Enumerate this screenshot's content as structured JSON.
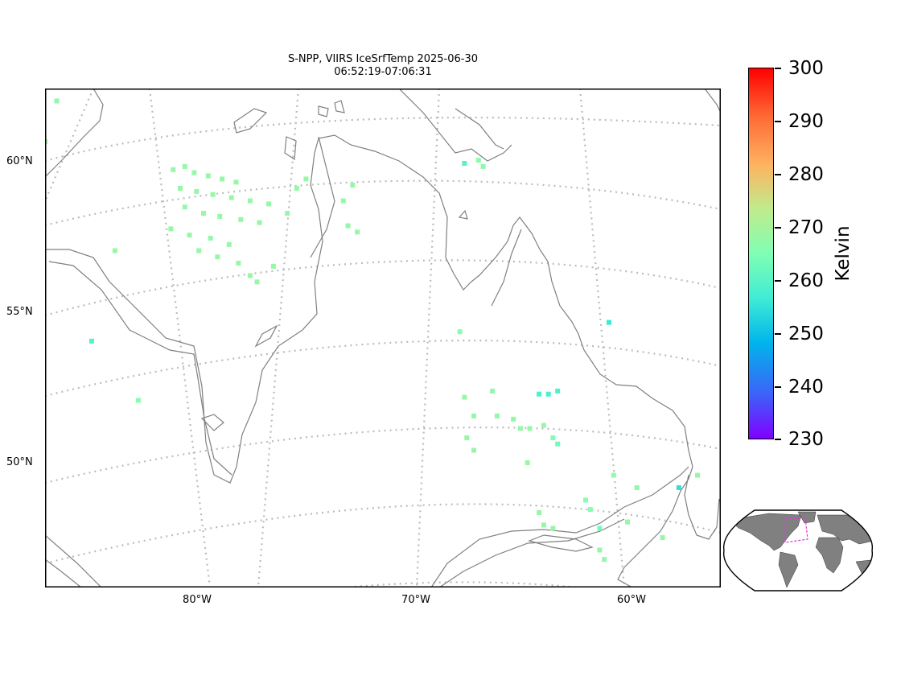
{
  "title_line1": "S-NPP, VIIRS IceSrfTemp 2025-06-30",
  "title_line2": "06:52:19-07:06:31",
  "lat_labels": [
    "60°N",
    "55°N",
    "50°N"
  ],
  "lon_labels": [
    "80°W",
    "70°W",
    "60°W"
  ],
  "colorbar": {
    "unit": "Kelvin",
    "ticks": [
      "300",
      "290",
      "280",
      "270",
      "260",
      "250",
      "240",
      "230"
    ],
    "min": 230,
    "max": 300,
    "colormap": "rainbow",
    "colors": [
      "#8000ff",
      "#3c63f9",
      "#00b5eb",
      "#40ecd4",
      "#80ffb4",
      "#c0eb8d",
      "#ffb360",
      "#ff6a35",
      "#ff0000"
    ]
  },
  "map": {
    "projection": "regional",
    "region": "Hudson Bay, Quebec and Labrador",
    "lon_range": [
      -86,
      -57
    ],
    "lat_range": [
      46,
      62
    ],
    "coastline_color": "#808080",
    "grid_color": "#bbbbbb"
  },
  "observations": [
    {
      "lon": -85.5,
      "lat": 61.6,
      "k": 267
    },
    {
      "lon": -86.0,
      "lat": 60.3,
      "k": 268
    },
    {
      "lon": -80.5,
      "lat": 59.4,
      "k": 268
    },
    {
      "lon": -80.0,
      "lat": 59.5,
      "k": 268
    },
    {
      "lon": -79.6,
      "lat": 59.3,
      "k": 268
    },
    {
      "lon": -79.0,
      "lat": 59.2,
      "k": 268
    },
    {
      "lon": -78.4,
      "lat": 59.1,
      "k": 268
    },
    {
      "lon": -77.8,
      "lat": 59.0,
      "k": 268
    },
    {
      "lon": -80.2,
      "lat": 58.8,
      "k": 268
    },
    {
      "lon": -79.5,
      "lat": 58.7,
      "k": 268
    },
    {
      "lon": -78.8,
      "lat": 58.6,
      "k": 268
    },
    {
      "lon": -78.0,
      "lat": 58.5,
      "k": 268
    },
    {
      "lon": -77.2,
      "lat": 58.4,
      "k": 268
    },
    {
      "lon": -76.4,
      "lat": 58.3,
      "k": 268
    },
    {
      "lon": -80.0,
      "lat": 58.2,
      "k": 268
    },
    {
      "lon": -79.2,
      "lat": 58.0,
      "k": 268
    },
    {
      "lon": -78.5,
      "lat": 57.9,
      "k": 268
    },
    {
      "lon": -77.6,
      "lat": 57.8,
      "k": 268
    },
    {
      "lon": -76.8,
      "lat": 57.7,
      "k": 268
    },
    {
      "lon": -80.6,
      "lat": 57.5,
      "k": 268
    },
    {
      "lon": -79.8,
      "lat": 57.3,
      "k": 268
    },
    {
      "lon": -78.9,
      "lat": 57.2,
      "k": 268
    },
    {
      "lon": -78.1,
      "lat": 57.0,
      "k": 268
    },
    {
      "lon": -79.4,
      "lat": 56.8,
      "k": 268
    },
    {
      "lon": -78.6,
      "lat": 56.6,
      "k": 268
    },
    {
      "lon": -77.7,
      "lat": 56.4,
      "k": 268
    },
    {
      "lon": -77.2,
      "lat": 56.0,
      "k": 268
    },
    {
      "lon": -76.9,
      "lat": 55.8,
      "k": 268
    },
    {
      "lon": -76.2,
      "lat": 56.3,
      "k": 268
    },
    {
      "lon": -75.6,
      "lat": 58.0,
      "k": 268
    },
    {
      "lon": -75.2,
      "lat": 58.8,
      "k": 268
    },
    {
      "lon": -74.8,
      "lat": 59.1,
      "k": 268
    },
    {
      "lon": -72.8,
      "lat": 58.9,
      "k": 268
    },
    {
      "lon": -73.2,
      "lat": 58.4,
      "k": 268
    },
    {
      "lon": -73.0,
      "lat": 57.6,
      "k": 268
    },
    {
      "lon": -72.6,
      "lat": 57.4,
      "k": 268
    },
    {
      "lon": -83.0,
      "lat": 56.8,
      "k": 268
    },
    {
      "lon": -84.0,
      "lat": 53.9,
      "k": 259
    },
    {
      "lon": -82.0,
      "lat": 52.0,
      "k": 266
    },
    {
      "lon": -68.2,
      "lat": 54.2,
      "k": 266
    },
    {
      "lon": -68.0,
      "lat": 59.6,
      "k": 259
    },
    {
      "lon": -67.4,
      "lat": 59.7,
      "k": 267
    },
    {
      "lon": -67.2,
      "lat": 59.5,
      "k": 267
    },
    {
      "lon": -61.8,
      "lat": 54.5,
      "k": 256
    },
    {
      "lon": -68.0,
      "lat": 52.1,
      "k": 268
    },
    {
      "lon": -66.8,
      "lat": 52.3,
      "k": 267
    },
    {
      "lon": -67.6,
      "lat": 51.5,
      "k": 268
    },
    {
      "lon": -66.6,
      "lat": 51.5,
      "k": 268
    },
    {
      "lon": -65.9,
      "lat": 51.4,
      "k": 268
    },
    {
      "lon": -65.6,
      "lat": 51.1,
      "k": 268
    },
    {
      "lon": -65.2,
      "lat": 51.1,
      "k": 268
    },
    {
      "lon": -64.6,
      "lat": 51.2,
      "k": 268
    },
    {
      "lon": -64.8,
      "lat": 52.2,
      "k": 258
    },
    {
      "lon": -64.4,
      "lat": 52.2,
      "k": 258
    },
    {
      "lon": -64.0,
      "lat": 52.3,
      "k": 258
    },
    {
      "lon": -67.9,
      "lat": 50.8,
      "k": 268
    },
    {
      "lon": -67.6,
      "lat": 50.4,
      "k": 268
    },
    {
      "lon": -65.3,
      "lat": 50.0,
      "k": 268
    },
    {
      "lon": -64.2,
      "lat": 50.8,
      "k": 265
    },
    {
      "lon": -64.0,
      "lat": 50.6,
      "k": 263
    },
    {
      "lon": -61.6,
      "lat": 49.6,
      "k": 267
    },
    {
      "lon": -60.6,
      "lat": 49.2,
      "k": 267
    },
    {
      "lon": -58.8,
      "lat": 49.2,
      "k": 254
    },
    {
      "lon": -58.0,
      "lat": 49.6,
      "k": 268
    },
    {
      "lon": -62.8,
      "lat": 48.8,
      "k": 266
    },
    {
      "lon": -62.6,
      "lat": 48.5,
      "k": 266
    },
    {
      "lon": -64.8,
      "lat": 48.4,
      "k": 268
    },
    {
      "lon": -64.6,
      "lat": 48.0,
      "k": 268
    },
    {
      "lon": -64.2,
      "lat": 47.9,
      "k": 268
    },
    {
      "lon": -62.2,
      "lat": 47.9,
      "k": 263
    },
    {
      "lon": -61.0,
      "lat": 48.1,
      "k": 268
    },
    {
      "lon": -59.5,
      "lat": 47.6,
      "k": 268
    },
    {
      "lon": -62.2,
      "lat": 47.2,
      "k": 268
    },
    {
      "lon": -62.0,
      "lat": 46.9,
      "k": 268
    }
  ]
}
